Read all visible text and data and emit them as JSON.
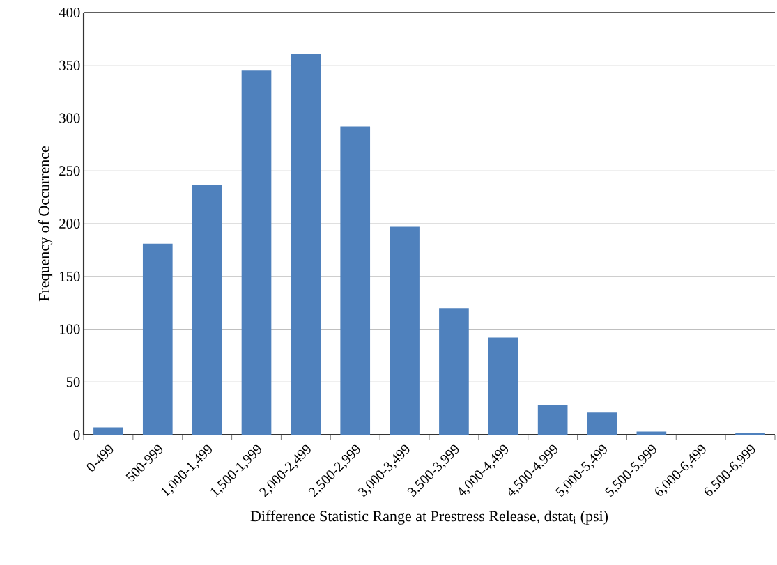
{
  "chart_data": {
    "type": "bar",
    "xlabel": "Difference Statistic Range at Prestress Release, dstat$_{i}$ (psi)",
    "ylabel": "Frequency of Occurrence",
    "categories": [
      "0-499",
      "500-999",
      "1,000-1,499",
      "1,500-1,999",
      "2,000-2,499",
      "2,500-2,999",
      "3,000-3,499",
      "3,500-3,999",
      "4,000-4,499",
      "4,500-4,999",
      "5,000-5,499",
      "5,500-5,999",
      "6,000-6,499",
      "6,500-6,999"
    ],
    "values": [
      7,
      181,
      237,
      345,
      361,
      292,
      197,
      120,
      92,
      28,
      21,
      3,
      0,
      2
    ],
    "color": "#4f81bd",
    "ylim": [
      0,
      400
    ],
    "yticks": [
      0,
      50,
      100,
      150,
      200,
      250,
      300,
      350,
      400
    ],
    "grid": "y"
  }
}
